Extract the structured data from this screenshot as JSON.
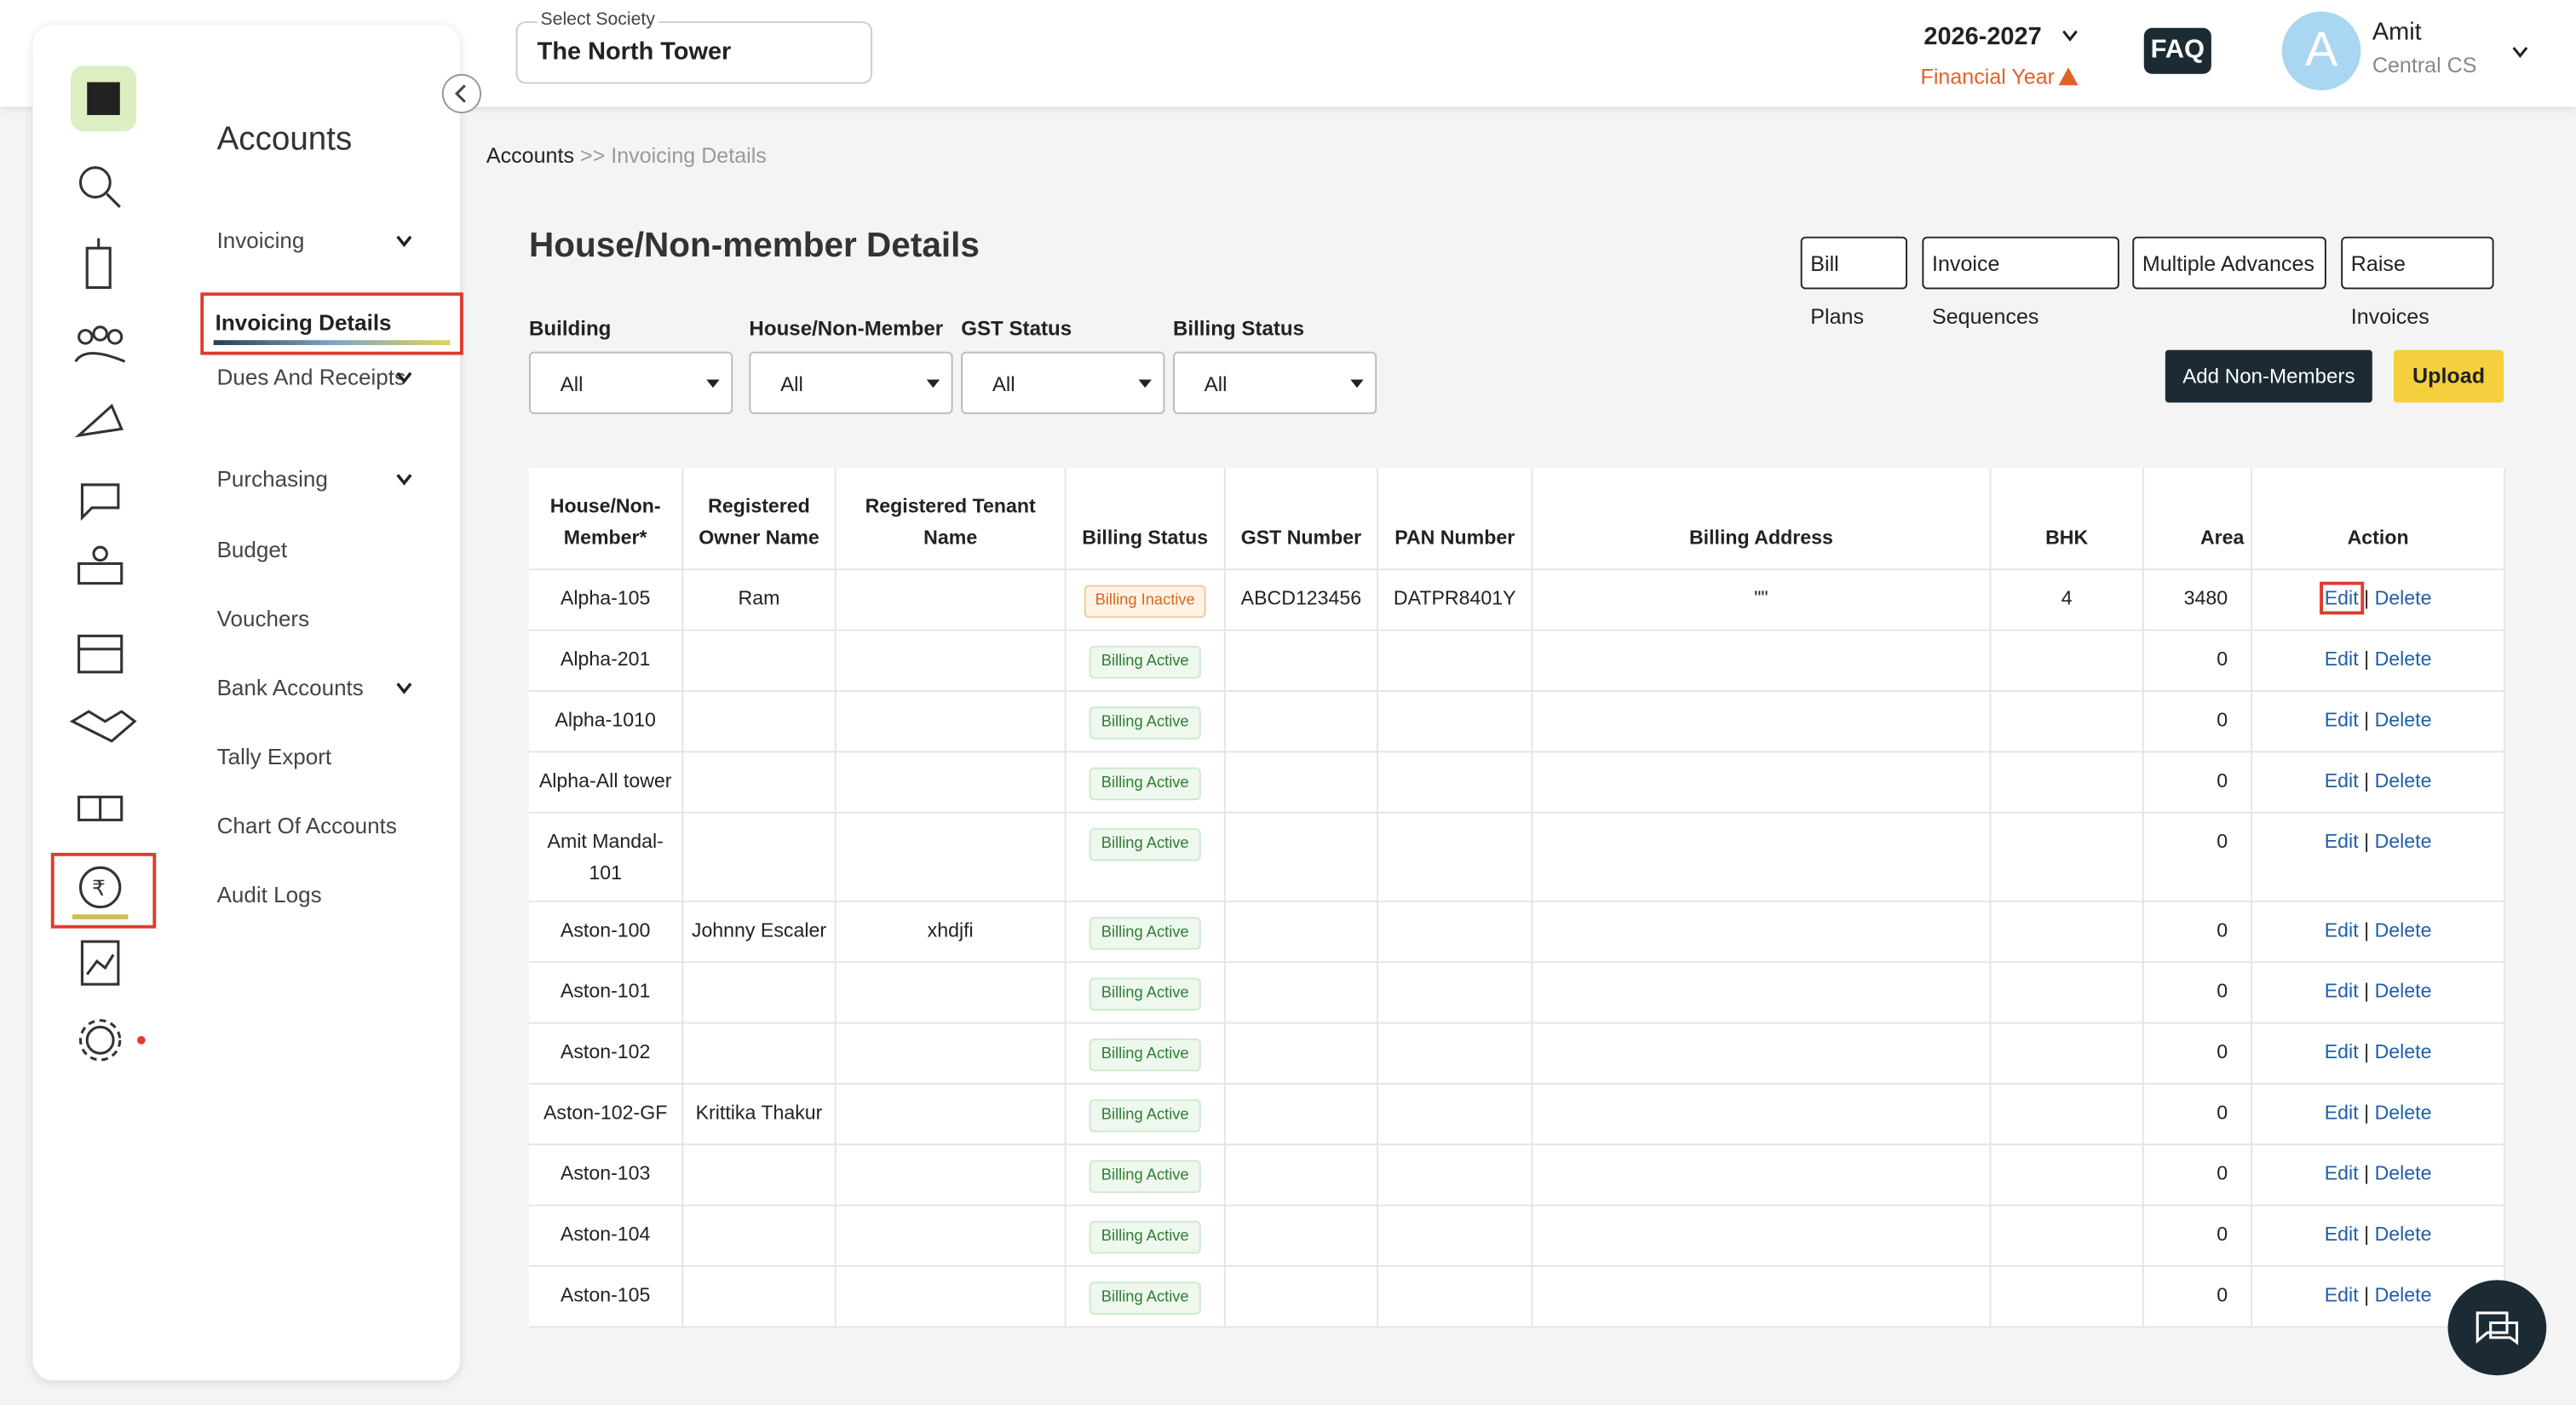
{
  "header": {
    "society_label": "Select Society",
    "society": "The North Tower",
    "year": "2026-2027",
    "year_label": "Financial Year",
    "faq": "FAQ",
    "avatar": "A",
    "user": "Amit",
    "role": "Central CS"
  },
  "sidebar": {
    "title": "Accounts",
    "items": [
      {
        "label": "Invoicing",
        "expandable": true
      },
      {
        "label": "Invoicing Details",
        "active": true
      },
      {
        "label": "Dues And Receipts",
        "expandable": true
      },
      {
        "label": "Purchasing",
        "expandable": true
      },
      {
        "label": "Budget"
      },
      {
        "label": "Vouchers"
      },
      {
        "label": "Bank Accounts",
        "expandable": true
      },
      {
        "label": "Tally Export"
      },
      {
        "label": "Chart Of Accounts"
      },
      {
        "label": "Audit Logs"
      }
    ]
  },
  "breadcrumb": {
    "root": "Accounts",
    "separator": ">>",
    "current": "Invoicing Details"
  },
  "page": {
    "title": "House/Non-member Details",
    "buttons": [
      "Bill Plans",
      "Invoice Sequences",
      "Multiple Advances",
      "Raise Invoices"
    ],
    "filters": [
      {
        "label": "Building",
        "value": "All"
      },
      {
        "label": "House/Non-Member",
        "value": "All"
      },
      {
        "label": "GST Status",
        "value": "All"
      },
      {
        "label": "Billing Status",
        "value": "All"
      }
    ],
    "add_button": "Add Non-Members",
    "upload_button": "Upload"
  },
  "table": {
    "columns": [
      "House/Non-Member*",
      "Registered Owner Name",
      "Registered Tenant Name",
      "Billing Status",
      "GST Number",
      "PAN Number",
      "Billing Address",
      "BHK",
      "Area",
      "Action"
    ],
    "rows": [
      [
        "Alpha-105",
        "Ram",
        null,
        "Billing Inactive",
        "ABCD123456",
        "DATPR8401Y",
        "\"\"",
        4,
        3480
      ],
      [
        "Alpha-201",
        null,
        null,
        "Billing Active",
        null,
        null,
        null,
        null,
        0
      ],
      [
        "Alpha-1010",
        null,
        null,
        "Billing Active",
        null,
        null,
        null,
        null,
        0
      ],
      [
        "Alpha-All tower",
        null,
        null,
        "Billing Active",
        null,
        null,
        null,
        null,
        0
      ],
      [
        "Amit Mandal-101",
        null,
        null,
        "Billing Active",
        null,
        null,
        null,
        null,
        0
      ],
      [
        "Aston-100",
        "Johnny Escaler",
        "xhdjfi",
        "Billing Active",
        null,
        null,
        null,
        null,
        0
      ],
      [
        "Aston-101",
        null,
        null,
        "Billing Active",
        null,
        null,
        null,
        null,
        0
      ],
      [
        "Aston-102",
        null,
        null,
        "Billing Active",
        null,
        null,
        null,
        null,
        0
      ],
      [
        "Aston-102-GF",
        "Krittika Thakur",
        null,
        "Billing Active",
        null,
        null,
        null,
        null,
        0
      ],
      [
        "Aston-103",
        null,
        null,
        "Billing Active",
        null,
        null,
        null,
        null,
        0
      ],
      [
        "Aston-104",
        null,
        null,
        "Billing Active",
        null,
        null,
        null,
        null,
        0
      ],
      [
        "Aston-105",
        null,
        null,
        "Billing Active",
        null,
        null,
        null,
        null,
        0
      ]
    ],
    "action": {
      "edit": "Edit",
      "separator": "|",
      "delete": "Delete"
    },
    "highlight_row": 0
  }
}
